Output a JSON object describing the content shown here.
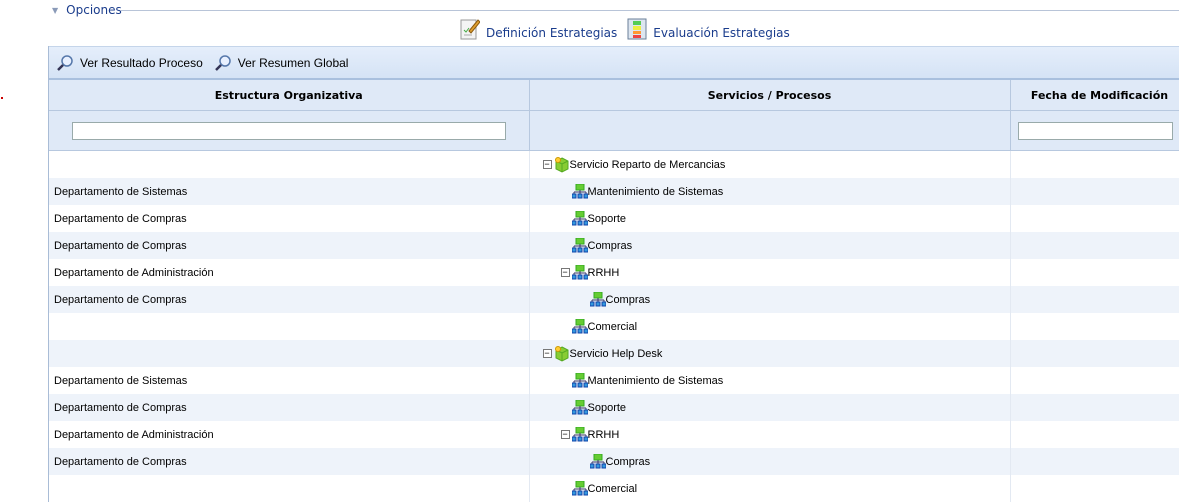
{
  "options": {
    "label": "Opciones"
  },
  "links": [
    {
      "label": "Definición Estrategias",
      "icon": "edit-document-icon"
    },
    {
      "label": "Evaluación Estrategias",
      "icon": "evaluation-table-icon"
    }
  ],
  "toolbar": [
    {
      "label": "Ver Resultado Proceso",
      "icon": "magnifier-icon"
    },
    {
      "label": "Ver Resumen Global",
      "icon": "magnifier-icon"
    }
  ],
  "columns": [
    "Estructura Organizativa",
    "Servicios / Procesos",
    "Fecha de Modificación"
  ],
  "filters": {
    "estructura": "",
    "fecha": ""
  },
  "rows": [
    {
      "org": "",
      "proc": "Servicio Reparto de Mercancias",
      "level": 0,
      "type": "service",
      "expanded": true,
      "date": ""
    },
    {
      "org": "Departamento de Sistemas",
      "proc": "Mantenimiento de Sistemas",
      "level": 1,
      "type": "process",
      "date": ""
    },
    {
      "org": "Departamento de Compras",
      "proc": "Soporte",
      "level": 1,
      "type": "process",
      "date": ""
    },
    {
      "org": "Departamento de Compras",
      "proc": "Compras",
      "level": 1,
      "type": "process",
      "date": ""
    },
    {
      "org": "Departamento de Administración",
      "proc": "RRHH",
      "level": 1,
      "type": "process",
      "expanded": true,
      "date": ""
    },
    {
      "org": "Departamento de Compras",
      "proc": "Compras",
      "level": 2,
      "type": "process",
      "date": ""
    },
    {
      "org": "",
      "proc": "Comercial",
      "level": 1,
      "type": "process",
      "date": ""
    },
    {
      "org": "",
      "proc": "Servicio Help Desk",
      "level": 0,
      "type": "service",
      "expanded": true,
      "date": ""
    },
    {
      "org": "Departamento de Sistemas",
      "proc": "Mantenimiento de Sistemas",
      "level": 1,
      "type": "process",
      "date": ""
    },
    {
      "org": "Departamento de Compras",
      "proc": "Soporte",
      "level": 1,
      "type": "process",
      "date": ""
    },
    {
      "org": "Departamento de Administración",
      "proc": "RRHH",
      "level": 1,
      "type": "process",
      "expanded": true,
      "date": ""
    },
    {
      "org": "Departamento de Compras",
      "proc": "Compras",
      "level": 2,
      "type": "process",
      "date": ""
    },
    {
      "org": "",
      "proc": "Comercial",
      "level": 1,
      "type": "process",
      "date": ""
    }
  ]
}
